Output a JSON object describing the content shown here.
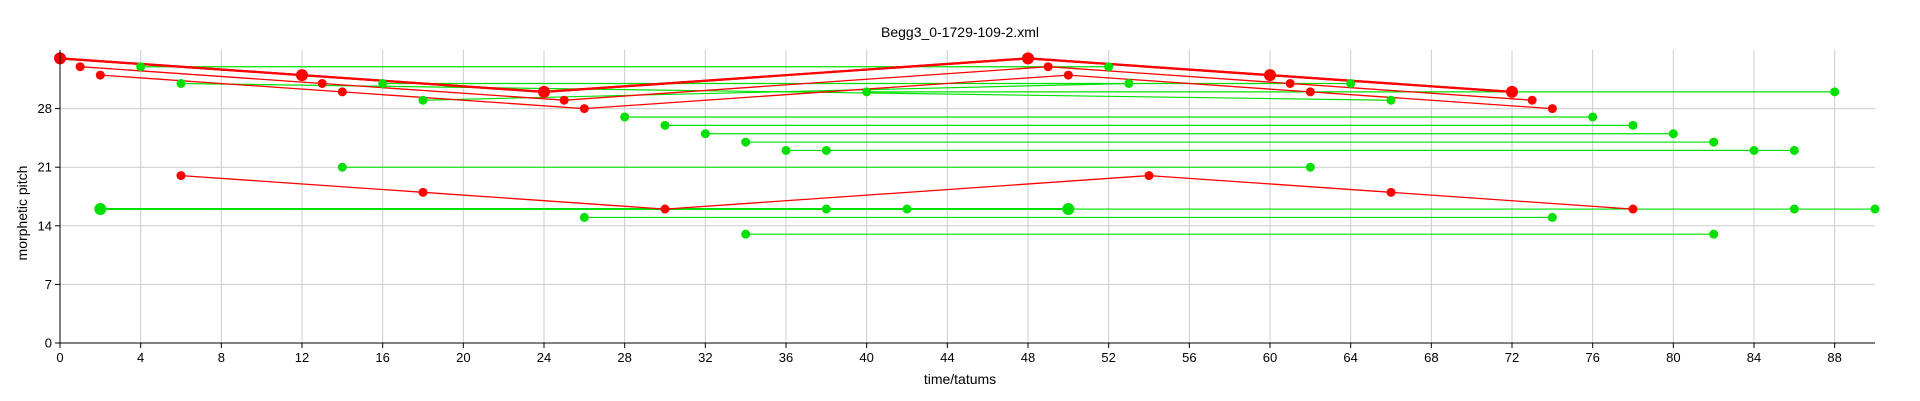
{
  "chart_data": {
    "type": "scatter",
    "title": "Begg3_0-1729-109-2.xml",
    "xlabel": "time/tatums",
    "ylabel": "morphetic pitch",
    "xlim": [
      0,
      90
    ],
    "ylim": [
      0,
      35
    ],
    "xticks": [
      0,
      4,
      8,
      12,
      16,
      20,
      24,
      28,
      32,
      36,
      40,
      44,
      48,
      52,
      56,
      60,
      64,
      68,
      72,
      76,
      80,
      84,
      88
    ],
    "yticks": [
      0,
      7,
      14,
      21,
      28
    ],
    "grid": true,
    "colors": {
      "green": "#00e000",
      "red": "#ff0000",
      "grid": "#cccccc"
    },
    "green_segments": [
      {
        "x": [
          2,
          50
        ],
        "y": [
          16,
          16
        ],
        "large": true
      },
      {
        "x": [
          50,
          90
        ],
        "y": [
          16,
          16
        ]
      },
      {
        "x": [
          4,
          52
        ],
        "y": [
          33,
          33
        ]
      },
      {
        "x": [
          6,
          66
        ],
        "y": [
          31,
          29
        ]
      },
      {
        "x": [
          14,
          62
        ],
        "y": [
          21,
          21
        ]
      },
      {
        "x": [
          16,
          64
        ],
        "y": [
          31,
          31
        ]
      },
      {
        "x": [
          18,
          53
        ],
        "y": [
          29,
          31
        ]
      },
      {
        "x": [
          26,
          74
        ],
        "y": [
          15,
          15
        ]
      },
      {
        "x": [
          28,
          76
        ],
        "y": [
          27,
          27
        ]
      },
      {
        "x": [
          30,
          78
        ],
        "y": [
          26,
          26
        ]
      },
      {
        "x": [
          32,
          80
        ],
        "y": [
          25,
          25
        ]
      },
      {
        "x": [
          34,
          82
        ],
        "y": [
          24,
          24
        ]
      },
      {
        "x": [
          34,
          82
        ],
        "y": [
          13,
          13
        ]
      },
      {
        "x": [
          36,
          84
        ],
        "y": [
          23,
          23
        ]
      },
      {
        "x": [
          38,
          86
        ],
        "y": [
          23,
          23
        ]
      },
      {
        "x": [
          40,
          88
        ],
        "y": [
          30,
          30
        ]
      }
    ],
    "green_points": [
      {
        "x": 2,
        "y": 16,
        "large": true
      },
      {
        "x": 4,
        "y": 33
      },
      {
        "x": 6,
        "y": 31
      },
      {
        "x": 14,
        "y": 21
      },
      {
        "x": 16,
        "y": 31
      },
      {
        "x": 18,
        "y": 29
      },
      {
        "x": 26,
        "y": 15
      },
      {
        "x": 28,
        "y": 27
      },
      {
        "x": 30,
        "y": 26
      },
      {
        "x": 32,
        "y": 25
      },
      {
        "x": 34,
        "y": 24
      },
      {
        "x": 34,
        "y": 13
      },
      {
        "x": 36,
        "y": 23
      },
      {
        "x": 38,
        "y": 23
      },
      {
        "x": 38,
        "y": 16
      },
      {
        "x": 40,
        "y": 30
      },
      {
        "x": 42,
        "y": 16
      },
      {
        "x": 50,
        "y": 16,
        "large": true
      },
      {
        "x": 52,
        "y": 33
      },
      {
        "x": 53,
        "y": 31
      },
      {
        "x": 62,
        "y": 21
      },
      {
        "x": 64,
        "y": 31
      },
      {
        "x": 66,
        "y": 29
      },
      {
        "x": 74,
        "y": 15
      },
      {
        "x": 76,
        "y": 27
      },
      {
        "x": 78,
        "y": 26
      },
      {
        "x": 80,
        "y": 25
      },
      {
        "x": 82,
        "y": 24
      },
      {
        "x": 82,
        "y": 13
      },
      {
        "x": 84,
        "y": 23
      },
      {
        "x": 86,
        "y": 23
      },
      {
        "x": 86,
        "y": 16
      },
      {
        "x": 88,
        "y": 30
      },
      {
        "x": 90,
        "y": 16
      }
    ],
    "red_paths": [
      {
        "x": [
          0,
          24,
          48,
          72
        ],
        "y": [
          34,
          30,
          34,
          30
        ],
        "thick": true
      },
      {
        "x": [
          0,
          12,
          24,
          48,
          60,
          72
        ],
        "y": [
          34,
          32,
          30,
          34,
          32,
          30
        ],
        "thick": true
      },
      {
        "x": [
          1,
          13,
          25,
          49,
          61,
          73
        ],
        "y": [
          33,
          31,
          29,
          33,
          31,
          29
        ]
      },
      {
        "x": [
          2,
          14,
          26,
          50,
          62,
          74
        ],
        "y": [
          32,
          30,
          28,
          32,
          30,
          28
        ]
      },
      {
        "x": [
          6,
          18,
          30,
          54,
          66,
          78
        ],
        "y": [
          20,
          18,
          16,
          20,
          18,
          16
        ]
      }
    ],
    "red_points": [
      {
        "x": 0,
        "y": 34,
        "large": true
      },
      {
        "x": 1,
        "y": 33
      },
      {
        "x": 2,
        "y": 32
      },
      {
        "x": 6,
        "y": 20
      },
      {
        "x": 12,
        "y": 32,
        "large": true
      },
      {
        "x": 13,
        "y": 31
      },
      {
        "x": 14,
        "y": 30
      },
      {
        "x": 18,
        "y": 18
      },
      {
        "x": 24,
        "y": 30,
        "large": true
      },
      {
        "x": 25,
        "y": 29
      },
      {
        "x": 26,
        "y": 28
      },
      {
        "x": 30,
        "y": 16
      },
      {
        "x": 48,
        "y": 34,
        "large": true
      },
      {
        "x": 49,
        "y": 33
      },
      {
        "x": 50,
        "y": 32
      },
      {
        "x": 54,
        "y": 20
      },
      {
        "x": 60,
        "y": 32,
        "large": true
      },
      {
        "x": 61,
        "y": 31
      },
      {
        "x": 62,
        "y": 30
      },
      {
        "x": 66,
        "y": 18
      },
      {
        "x": 72,
        "y": 30,
        "large": true
      },
      {
        "x": 73,
        "y": 29
      },
      {
        "x": 74,
        "y": 28
      },
      {
        "x": 78,
        "y": 16
      }
    ]
  }
}
